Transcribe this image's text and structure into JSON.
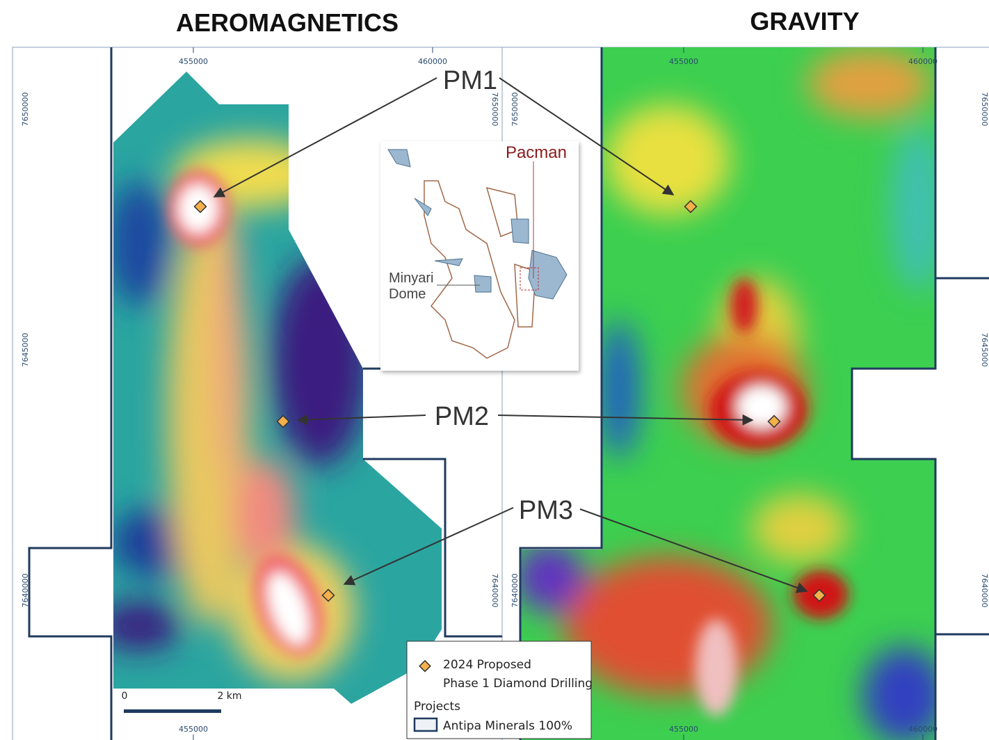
{
  "panels": [
    {
      "title": "AEROMAGNETICS",
      "easting_top": [
        "455000",
        "460000"
      ],
      "easting_bottom": [
        "455000"
      ],
      "northing_left": [
        "7650000",
        "7645000",
        "7640000"
      ],
      "northing_right": [
        "7650000",
        "7640000"
      ]
    },
    {
      "title": "GRAVITY",
      "easting_top": [
        "455000",
        "460000"
      ],
      "easting_bottom": [
        "455000",
        "460000"
      ],
      "northing_left": [
        "7650000",
        "7640000"
      ],
      "northing_right": [
        "7650000",
        "7645000",
        "7640000"
      ]
    }
  ],
  "callouts": [
    "PM1",
    "PM2",
    "PM3"
  ],
  "inset": {
    "labels": [
      "Pacman",
      "Minyari",
      "Dome"
    ]
  },
  "scale_bar": {
    "start": "0",
    "end": "2 km"
  },
  "legend": {
    "lines": [
      "2024 Proposed",
      "Phase 1 Diamond Drilling"
    ],
    "section": "Projects",
    "item": "Antipa Minerals 100%"
  }
}
